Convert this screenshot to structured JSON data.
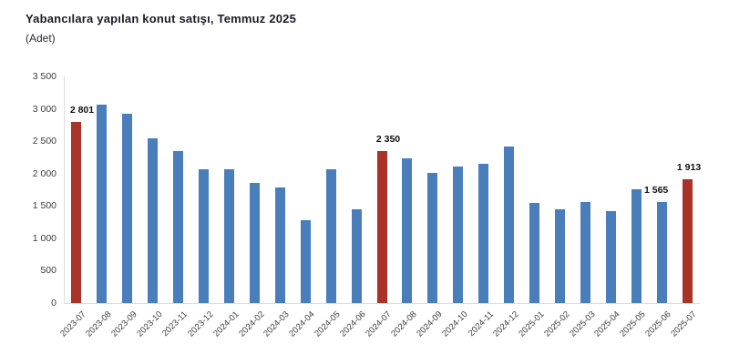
{
  "chart_data": {
    "type": "bar",
    "title": "Yabancılara yapılan konut satışı, Temmuz 2025",
    "unit_label": "(Adet)",
    "xlabel": "",
    "ylabel": "",
    "categories": [
      "2023-07",
      "2023-08",
      "2023-09",
      "2023-10",
      "2023-11",
      "2023-12",
      "2024-01",
      "2024-02",
      "2024-03",
      "2024-04",
      "2024-05",
      "2024-06",
      "2024-07",
      "2024-08",
      "2024-09",
      "2024-10",
      "2024-11",
      "2024-12",
      "2025-01",
      "2025-02",
      "2025-03",
      "2025-04",
      "2025-05",
      "2025-06",
      "2025-07"
    ],
    "values": [
      2801,
      3070,
      2930,
      2545,
      2345,
      2060,
      2060,
      1850,
      1780,
      1280,
      2060,
      1450,
      2350,
      2240,
      2005,
      2110,
      2150,
      2415,
      1540,
      1445,
      1565,
      1425,
      1760,
      1565,
      1913
    ],
    "highlight_indices": [
      0,
      12,
      24
    ],
    "value_labels": [
      {
        "index": 0,
        "text": "2 801"
      },
      {
        "index": 12,
        "text": "2 350"
      },
      {
        "index": 23,
        "text": "1 565"
      },
      {
        "index": 24,
        "text": "1 913"
      }
    ],
    "ylim": [
      0,
      3500
    ],
    "ytick_labels": [
      "0",
      "500",
      "1 000",
      "1 500",
      "2 000",
      "2 500",
      "3 000",
      "3 500"
    ],
    "grid": false,
    "legend": "none",
    "colors": {
      "bar_blue": "#4a7ebb",
      "bar_red": "#a93229",
      "axis_line": "#dcdcdc",
      "title_text": "#1b1b29",
      "tick_text": "#3c3c3c"
    }
  }
}
